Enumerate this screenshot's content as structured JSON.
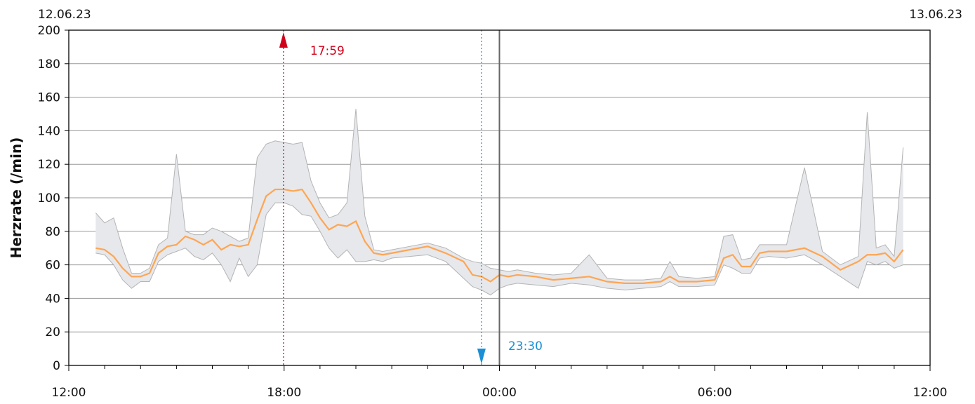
{
  "chart_data": {
    "type": "band-line",
    "ylabel": "Herzrate (/min)",
    "date_left": "12.06.23",
    "date_right": "13.06.23",
    "x": [
      0.75,
      1,
      1.25,
      1.5,
      1.75,
      2,
      2.25,
      2.5,
      2.75,
      3,
      3.25,
      3.5,
      3.75,
      4,
      4.25,
      4.5,
      4.75,
      5,
      5.25,
      5.5,
      5.75,
      6,
      6.25,
      6.5,
      6.75,
      7,
      7.25,
      7.5,
      7.75,
      8,
      8.25,
      8.5,
      8.75,
      9,
      9.5,
      10,
      10.5,
      11,
      11.25,
      11.5,
      11.75,
      12,
      12.25,
      12.5,
      13,
      13.5,
      14,
      14.5,
      15,
      15.5,
      16,
      16.5,
      16.75,
      17,
      17.5,
      18,
      18.25,
      18.5,
      18.75,
      19,
      19.25,
      19.5,
      20,
      20.5,
      21,
      21.5,
      22,
      22.25,
      22.5,
      22.75,
      23,
      23.25
    ],
    "series": [
      {
        "color": "#ffa552",
        "values": [
          70,
          69,
          65,
          58,
          53,
          53,
          55,
          67,
          71,
          72,
          77,
          75,
          72,
          75,
          69,
          72,
          71,
          72,
          87,
          101,
          105,
          105,
          104,
          105,
          97,
          88,
          81,
          84,
          83,
          86,
          74,
          67,
          66,
          67,
          69,
          71,
          67,
          62,
          54,
          53,
          50,
          54,
          53,
          54,
          53,
          51,
          52,
          53,
          50,
          49,
          49,
          50,
          53,
          50,
          50,
          51,
          64,
          66,
          59,
          59,
          67,
          68,
          68,
          70,
          65,
          57,
          62,
          66,
          66,
          67,
          62,
          69
        ]
      },
      {
        "color": "#b4b4b4",
        "values": [
          91,
          85,
          88,
          70,
          55,
          55,
          58,
          72,
          76,
          126,
          80,
          78,
          78,
          82,
          80,
          77,
          74,
          76,
          124,
          132,
          134,
          133,
          132,
          133,
          110,
          97,
          88,
          90,
          97,
          153,
          89,
          69,
          68,
          69,
          71,
          73,
          70,
          64,
          62,
          61,
          58,
          57,
          56,
          57,
          55,
          54,
          55,
          66,
          52,
          51,
          51,
          52,
          62,
          53,
          52,
          53,
          77,
          78,
          63,
          64,
          72,
          72,
          72,
          118,
          68,
          60,
          65,
          151,
          70,
          72,
          65,
          130
        ]
      },
      {
        "color": "#b4b4b4",
        "values": [
          67,
          66,
          60,
          51,
          46,
          50,
          50,
          62,
          66,
          68,
          70,
          65,
          63,
          67,
          60,
          50,
          64,
          53,
          60,
          90,
          97,
          97,
          95,
          90,
          89,
          80,
          70,
          64,
          69,
          62,
          62,
          63,
          62,
          64,
          65,
          66,
          62,
          52,
          47,
          45,
          42,
          46,
          48,
          49,
          48,
          47,
          49,
          48,
          46,
          45,
          46,
          47,
          50,
          47,
          47,
          48,
          60,
          58,
          55,
          55,
          64,
          65,
          64,
          66,
          60,
          53,
          46,
          62,
          60,
          62,
          58,
          60
        ]
      }
    ],
    "band_fill": "#e6e8ec",
    "xlim": [
      0,
      24
    ],
    "xticks": [
      {
        "value": 0,
        "label": "12:00"
      },
      {
        "value": 6,
        "label": "18:00"
      },
      {
        "value": 12,
        "label": "00:00"
      },
      {
        "value": 18,
        "label": "06:00"
      },
      {
        "value": 24,
        "label": "12:00"
      }
    ],
    "xminorticks": [
      1,
      2,
      3,
      4,
      5,
      7,
      8,
      9,
      10,
      11,
      13,
      14,
      15,
      16,
      17,
      19,
      20,
      21,
      22,
      23
    ],
    "ylim": [
      0,
      200
    ],
    "yticks": [
      0,
      20,
      40,
      60,
      80,
      100,
      120,
      140,
      160,
      180,
      200
    ],
    "grid": true,
    "day_boundary": 12,
    "markers": [
      {
        "label": "17:59",
        "x": 5.983,
        "color": "#d0021b",
        "direction": "up"
      },
      {
        "label": "23:30",
        "x": 11.5,
        "color": "#1a8fd6",
        "direction": "down"
      }
    ]
  }
}
